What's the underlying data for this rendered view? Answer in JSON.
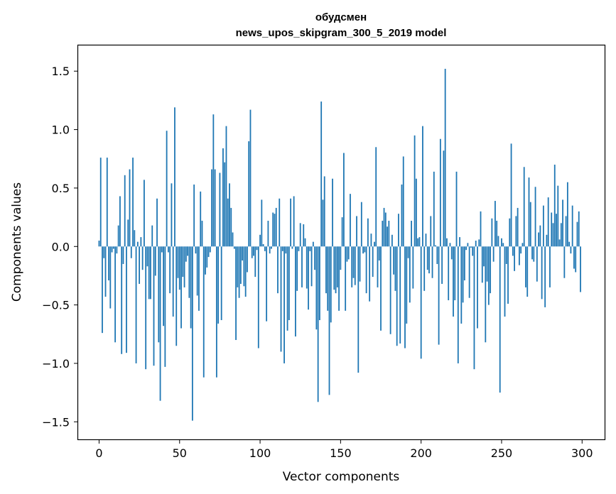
{
  "chart_data": {
    "type": "bar",
    "title": "обудсмен",
    "subtitle": "news_upos_skipgram_300_5_2019 model",
    "xlabel": "Vector components",
    "ylabel": "Components values",
    "xlim": [
      -13,
      314
    ],
    "ylim": [
      -1.65,
      1.72
    ],
    "xticks": [
      0,
      50,
      100,
      150,
      200,
      250,
      300
    ],
    "yticks": [
      -1.5,
      -1.0,
      -0.5,
      0.0,
      0.5,
      1.0,
      1.5
    ],
    "ytick_labels": [
      "−1.5",
      "−1.0",
      "−0.5",
      "0.0",
      "0.5",
      "1.0",
      "1.5"
    ],
    "grid": false,
    "bar_color": "#1f77b4",
    "values": [
      0.05,
      0.76,
      -0.74,
      -0.1,
      -0.43,
      0.76,
      -0.29,
      -0.53,
      -0.05,
      -0.02,
      -0.82,
      -0.06,
      0.18,
      0.43,
      -0.92,
      -0.15,
      0.61,
      -0.91,
      0.23,
      0.66,
      -0.1,
      0.76,
      0.14,
      -1.0,
      0.04,
      -0.32,
      0.08,
      -0.2,
      0.57,
      -1.05,
      -0.17,
      -0.45,
      -0.45,
      0.18,
      -1.02,
      -0.25,
      0.41,
      -0.82,
      -1.32,
      -0.05,
      -0.68,
      -1.03,
      0.99,
      -0.05,
      -0.4,
      0.54,
      -0.6,
      1.19,
      -0.85,
      -0.27,
      -0.37,
      -0.7,
      -0.26,
      -0.35,
      -0.13,
      -0.08,
      -0.44,
      -0.7,
      -1.49,
      0.53,
      -0.06,
      -0.42,
      -0.55,
      0.47,
      0.22,
      -1.12,
      -0.24,
      -0.18,
      -0.09,
      -0.05,
      0.66,
      1.13,
      0.66,
      -1.12,
      -0.66,
      0.63,
      -0.63,
      0.84,
      0.72,
      1.03,
      0.41,
      0.54,
      0.33,
      0.12,
      -0.02,
      -0.8,
      -0.35,
      -0.44,
      -0.32,
      -0.12,
      -0.34,
      -0.43,
      -0.22,
      0.9,
      1.17,
      -0.1,
      -0.08,
      -0.26,
      -0.03,
      -0.87,
      0.1,
      0.4,
      0.02,
      -0.04,
      -0.64,
      0.22,
      -0.06,
      -0.02,
      0.29,
      0.28,
      0.33,
      -0.4,
      0.41,
      -0.9,
      -0.04,
      -1.0,
      -0.06,
      -0.72,
      -0.63,
      0.41,
      -0.02,
      0.43,
      -0.77,
      -0.38,
      -0.04,
      0.2,
      -0.35,
      0.19,
      0.07,
      -0.36,
      -0.54,
      -0.04,
      -0.34,
      0.04,
      -0.2,
      -0.71,
      -1.33,
      -0.63,
      1.24,
      0.4,
      0.6,
      -0.4,
      -0.55,
      -1.27,
      -0.65,
      0.58,
      -0.37,
      -0.4,
      -0.35,
      -0.55,
      -0.2,
      0.25,
      0.8,
      -0.55,
      -0.13,
      -0.11,
      0.45,
      -0.35,
      -0.27,
      -0.33,
      0.26,
      -1.08,
      -0.3,
      0.38,
      -0.06,
      -0.05,
      -0.4,
      0.24,
      -0.47,
      0.11,
      -0.26,
      0.04,
      0.85,
      -0.35,
      -0.12,
      -0.72,
      0.22,
      0.33,
      0.29,
      0.17,
      0.22,
      -0.75,
      0.1,
      -0.24,
      -0.38,
      -0.85,
      0.28,
      -0.83,
      0.53,
      0.77,
      -0.87,
      -0.66,
      -0.1,
      -0.48,
      0.22,
      -0.36,
      0.95,
      0.58,
      0.07,
      0.08,
      -0.96,
      1.03,
      -0.38,
      0.11,
      -0.2,
      -0.23,
      0.26,
      -0.27,
      0.64,
      0.01,
      -0.15,
      -0.84,
      0.92,
      -0.32,
      0.82,
      1.52,
      0.07,
      -0.46,
      0.03,
      -0.11,
      -0.6,
      -0.46,
      0.64,
      -1.0,
      0.08,
      -0.66,
      -0.48,
      -0.29,
      -0.03,
      0.03,
      -0.44,
      -0.01,
      -0.08,
      -1.05,
      0.05,
      -0.7,
      0.06,
      0.3,
      -0.31,
      -0.17,
      -0.82,
      -0.3,
      -0.5,
      -0.4,
      0.24,
      -0.13,
      0.39,
      0.22,
      0.09,
      -1.25,
      0.07,
      0.03,
      -0.6,
      -0.15,
      -0.49,
      0.24,
      0.88,
      -0.08,
      -0.21,
      0.26,
      0.33,
      -0.16,
      -0.06,
      0.03,
      0.68,
      -0.35,
      -0.43,
      0.59,
      0.38,
      -0.11,
      -0.13,
      0.51,
      -0.3,
      0.12,
      0.18,
      -0.45,
      0.35,
      -0.52,
      0.1,
      0.42,
      -0.35,
      0.29,
      0.2,
      0.7,
      0.28,
      0.52,
      0.06,
      0.2,
      0.4,
      -0.27,
      0.26,
      0.55,
      0.04,
      -0.06,
      0.35,
      -0.19,
      -0.22,
      0.21,
      0.3,
      -0.39
    ]
  }
}
